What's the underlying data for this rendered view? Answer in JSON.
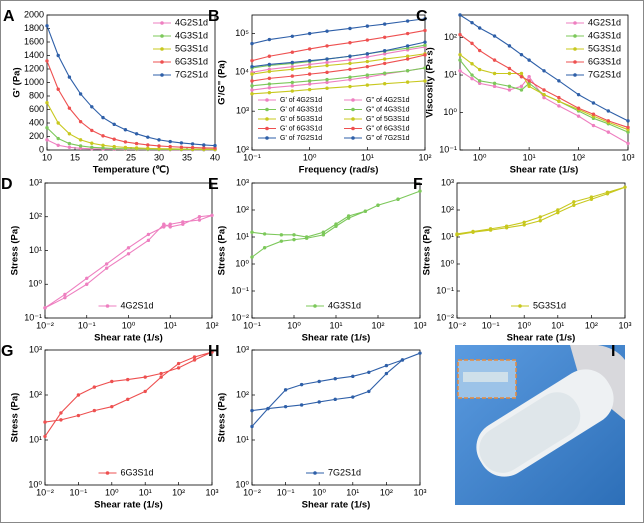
{
  "chart_data": [
    {
      "type": "line",
      "panel": "A",
      "xlabel": "Temperature (℃)",
      "ylabel": "G' (Pa)",
      "xlog": false,
      "ylog": false,
      "xlim": [
        10,
        40
      ],
      "xticks": [
        10,
        15,
        20,
        25,
        30,
        35,
        40
      ],
      "ylim": [
        0,
        2000
      ],
      "yticks": [
        0,
        200,
        400,
        600,
        800,
        1000,
        1200,
        1400,
        1600,
        1800,
        2000
      ],
      "legend": "upper right",
      "x": [
        10,
        12,
        14,
        16,
        18,
        20,
        22,
        24,
        26,
        28,
        30,
        32,
        34,
        36,
        38,
        40
      ],
      "series": [
        {
          "name": "4G2S1d",
          "color": "#ee7fc0",
          "values": [
            150,
            70,
            40,
            25,
            18,
            14,
            11,
            9,
            8,
            7,
            6,
            5,
            5,
            4,
            4,
            4
          ]
        },
        {
          "name": "4G3S1d",
          "color": "#7cc85a",
          "values": [
            330,
            170,
            95,
            60,
            40,
            30,
            22,
            18,
            15,
            12,
            10,
            9,
            8,
            7,
            6,
            6
          ]
        },
        {
          "name": "5G3S1d",
          "color": "#c8c81e",
          "values": [
            700,
            400,
            240,
            150,
            100,
            70,
            50,
            38,
            30,
            24,
            20,
            17,
            15,
            13,
            12,
            10
          ]
        },
        {
          "name": "6G3S1d",
          "color": "#ee5050",
          "values": [
            1320,
            900,
            620,
            420,
            290,
            210,
            160,
            120,
            95,
            75,
            60,
            50,
            42,
            36,
            31,
            28
          ]
        },
        {
          "name": "7G2S1d",
          "color": "#2e5fa8",
          "values": [
            1840,
            1400,
            1080,
            830,
            640,
            480,
            380,
            300,
            240,
            190,
            150,
            125,
            105,
            90,
            75,
            65
          ]
        }
      ]
    },
    {
      "type": "line",
      "panel": "B",
      "xlabel": "Frequency (rad/s)",
      "ylabel": "G'/G\" (Pa)",
      "xlog": true,
      "ylog": true,
      "xlim": [
        0.1,
        100
      ],
      "xticks": [
        {
          "value": 0.1,
          "label": "10⁻¹"
        },
        {
          "value": 1,
          "label": "10⁰"
        },
        {
          "value": 10,
          "label": "10¹"
        },
        {
          "value": 100,
          "label": "10²"
        }
      ],
      "ylim": [
        100,
        300000
      ],
      "yticks": [
        {
          "value": 100,
          "label": "10²"
        },
        {
          "value": 1000,
          "label": "10³"
        },
        {
          "value": 10000,
          "label": "10⁴"
        },
        {
          "value": 100000,
          "label": "10⁵"
        }
      ],
      "legend": "lower two columns",
      "x": [
        0.1,
        0.2,
        0.5,
        1,
        2,
        5,
        10,
        20,
        50,
        100
      ],
      "series": [
        {
          "name": "G' of 4G2S1d",
          "color": "#ee7fc0",
          "values": [
            10000,
            12000,
            14000,
            16000,
            18000,
            21000,
            25000,
            30000,
            38000,
            45000
          ]
        },
        {
          "name": "G'' of 4G2S1d",
          "color": "#ee7fc0",
          "values": [
            3500,
            4000,
            4500,
            5000,
            5500,
            6500,
            7500,
            9000,
            11000,
            13000
          ]
        },
        {
          "name": "G' of 4G3S1d",
          "color": "#7cc85a",
          "values": [
            13000,
            15000,
            17000,
            19000,
            22000,
            26000,
            30000,
            35000,
            42000,
            50000
          ]
        },
        {
          "name": "G'' of 4G3S1d",
          "color": "#7cc85a",
          "values": [
            4500,
            5000,
            5500,
            6000,
            6500,
            7500,
            8500,
            9500,
            11000,
            13000
          ]
        },
        {
          "name": "G' of 5G3S1d",
          "color": "#c8c81e",
          "values": [
            9000,
            10500,
            12000,
            13500,
            15000,
            17000,
            19000,
            22000,
            26000,
            30000
          ]
        },
        {
          "name": "G'' of 5G3S1d",
          "color": "#c8c81e",
          "values": [
            2800,
            3000,
            3300,
            3600,
            3900,
            4300,
            4700,
            5100,
            5600,
            6000
          ]
        },
        {
          "name": "G' of 6G3S1d",
          "color": "#ee5050",
          "values": [
            20000,
            26000,
            33000,
            40000,
            48000,
            58000,
            68000,
            80000,
            100000,
            120000
          ]
        },
        {
          "name": "G'' of 6G3S1d",
          "color": "#ee5050",
          "values": [
            6000,
            7000,
            8000,
            9000,
            10000,
            12000,
            14000,
            17000,
            22000,
            28000
          ]
        },
        {
          "name": "G' of 7G2S1d",
          "color": "#2e5fa8",
          "values": [
            55000,
            70000,
            85000,
            100000,
            115000,
            135000,
            155000,
            175000,
            210000,
            240000
          ]
        },
        {
          "name": "G'' of 7G2S1d",
          "color": "#2e5fa8",
          "values": [
            14000,
            16000,
            18000,
            20000,
            22000,
            26000,
            30000,
            36000,
            48000,
            60000
          ]
        }
      ]
    },
    {
      "type": "line",
      "panel": "C",
      "xlabel": "Shear rate (1/s)",
      "ylabel": "Viscosity (Pa·s)",
      "xlog": true,
      "ylog": true,
      "xlim": [
        0.4,
        1000
      ],
      "xticks": [
        {
          "value": 1,
          "label": "10⁰"
        },
        {
          "value": 10,
          "label": "10¹"
        },
        {
          "value": 100,
          "label": "10²"
        },
        {
          "value": 1000,
          "label": "10³"
        }
      ],
      "ylim": [
        0.1,
        400
      ],
      "yticks": [
        {
          "value": 0.1,
          "label": "10⁻¹"
        },
        {
          "value": 1,
          "label": "10⁰"
        },
        {
          "value": 10,
          "label": "10¹"
        },
        {
          "value": 100,
          "label": "10²"
        }
      ],
      "legend": "upper right",
      "x": [
        0.4,
        0.7,
        1,
        2,
        4,
        7,
        10,
        20,
        40,
        100,
        200,
        400,
        1000
      ],
      "series": [
        {
          "name": "4G2S1d",
          "color": "#ee7fc0",
          "values": [
            13,
            8,
            6,
            5,
            4,
            5,
            9,
            2.5,
            1.5,
            0.8,
            0.45,
            0.3,
            0.15
          ]
        },
        {
          "name": "4G3S1d",
          "color": "#7cc85a",
          "values": [
            25,
            10,
            7,
            6,
            5,
            4,
            6,
            3,
            2,
            1.1,
            0.7,
            0.5,
            0.3
          ]
        },
        {
          "name": "5G3S1d",
          "color": "#c8c81e",
          "values": [
            35,
            20,
            14,
            11,
            11,
            11,
            5,
            3,
            2,
            1.2,
            0.8,
            0.55,
            0.35
          ]
        },
        {
          "name": "6G3S1d",
          "color": "#ee5050",
          "values": [
            120,
            70,
            45,
            25,
            15,
            9,
            7,
            4,
            2.5,
            1.3,
            0.9,
            0.6,
            0.4
          ]
        },
        {
          "name": "7G2S1d",
          "color": "#2e5fa8",
          "values": [
            400,
            250,
            180,
            110,
            60,
            35,
            25,
            13,
            7,
            3,
            1.8,
            1.1,
            0.6
          ]
        }
      ]
    },
    {
      "type": "line",
      "panel": "D",
      "xlabel": "Shear rate (1/s)",
      "ylabel": "Stress (Pa)",
      "xlog": true,
      "ylog": true,
      "xlim": [
        0.01,
        100
      ],
      "xticks": [
        {
          "value": 0.01,
          "label": "10⁻²"
        },
        {
          "value": 0.1,
          "label": "10⁻¹"
        },
        {
          "value": 1,
          "label": "10⁰"
        },
        {
          "value": 10,
          "label": "10¹"
        },
        {
          "value": 100,
          "label": "10²"
        }
      ],
      "ylim": [
        0.1,
        1000
      ],
      "yticks": [
        {
          "value": 0.1,
          "label": "10⁻¹"
        },
        {
          "value": 1,
          "label": "10⁰"
        },
        {
          "value": 10,
          "label": "10¹"
        },
        {
          "value": 100,
          "label": "10²"
        },
        {
          "value": 1000,
          "label": "10³"
        }
      ],
      "legend": "lower center",
      "x": [
        0.01,
        0.03,
        0.1,
        0.3,
        1,
        3,
        7,
        10,
        20,
        50,
        100,
        50,
        20,
        10,
        7,
        3,
        1,
        0.3,
        0.1,
        0.03,
        0.01
      ],
      "series": [
        {
          "name": "4G2S1d",
          "color": "#ee7fc0",
          "values": [
            0.2,
            0.5,
            1.5,
            4,
            12,
            30,
            50,
            60,
            70,
            80,
            110,
            100,
            60,
            50,
            60,
            20,
            8,
            3,
            1,
            0.4,
            0.2
          ]
        }
      ]
    },
    {
      "type": "line",
      "panel": "E",
      "xlabel": "Shear rate (1/s)",
      "ylabel": "Stress (Pa)",
      "xlog": true,
      "ylog": true,
      "xlim": [
        0.1,
        1000
      ],
      "xticks": [
        {
          "value": 0.1,
          "label": "10⁻¹"
        },
        {
          "value": 1,
          "label": "10⁰"
        },
        {
          "value": 10,
          "label": "10¹"
        },
        {
          "value": 100,
          "label": "10²"
        },
        {
          "value": 1000,
          "label": "10³"
        }
      ],
      "ylim": [
        0.01,
        1000
      ],
      "yticks": [
        {
          "value": 0.01,
          "label": "10⁻²"
        },
        {
          "value": 0.1,
          "label": "10⁻¹"
        },
        {
          "value": 1,
          "label": "10⁰"
        },
        {
          "value": 10,
          "label": "10¹"
        },
        {
          "value": 100,
          "label": "10²"
        },
        {
          "value": 1000,
          "label": "10³"
        }
      ],
      "legend": "lower center",
      "x": [
        0.1,
        0.2,
        0.5,
        1,
        2,
        5,
        10,
        20,
        50,
        100,
        300,
        1000,
        300,
        100,
        50,
        20,
        10,
        5,
        2,
        1,
        0.5,
        0.2,
        0.1
      ],
      "series": [
        {
          "name": "4G3S1d",
          "color": "#7cc85a",
          "values": [
            15,
            13,
            12,
            12,
            10,
            15,
            30,
            60,
            90,
            150,
            250,
            500,
            250,
            150,
            90,
            50,
            25,
            12,
            9,
            8,
            7,
            4,
            1.8
          ]
        }
      ]
    },
    {
      "type": "line",
      "panel": "F",
      "xlabel": "Shear rate (1/s)",
      "ylabel": "Stress (Pa)",
      "xlog": true,
      "ylog": true,
      "xlim": [
        0.01,
        1000
      ],
      "xticks": [
        {
          "value": 0.01,
          "label": "10⁻²"
        },
        {
          "value": 0.1,
          "label": "10⁻¹"
        },
        {
          "value": 1,
          "label": "10⁰"
        },
        {
          "value": 10,
          "label": "10¹"
        },
        {
          "value": 100,
          "label": "10²"
        },
        {
          "value": 1000,
          "label": "10³"
        }
      ],
      "ylim": [
        0.01,
        1000
      ],
      "yticks": [
        {
          "value": 0.01,
          "label": "10⁻²"
        },
        {
          "value": 0.1,
          "label": "10⁻¹"
        },
        {
          "value": 1,
          "label": "10⁰"
        },
        {
          "value": 10,
          "label": "10¹"
        },
        {
          "value": 100,
          "label": "10²"
        },
        {
          "value": 1000,
          "label": "10³"
        }
      ],
      "legend": "lower center",
      "x": [
        0.01,
        0.03,
        0.1,
        0.3,
        1,
        3,
        10,
        30,
        100,
        300,
        1000,
        300,
        100,
        30,
        10,
        3,
        1,
        0.3,
        0.1,
        0.03,
        0.01
      ],
      "series": [
        {
          "name": "5G3S1d",
          "color": "#c8c81e",
          "values": [
            12,
            15,
            18,
            22,
            28,
            40,
            80,
            150,
            250,
            400,
            700,
            450,
            300,
            200,
            100,
            55,
            35,
            25,
            20,
            16,
            13
          ]
        }
      ]
    },
    {
      "type": "line",
      "panel": "G",
      "xlabel": "Shear rate (1/s)",
      "ylabel": "Stress (Pa)",
      "xlog": true,
      "ylog": true,
      "xlim": [
        0.01,
        1000
      ],
      "xticks": [
        {
          "value": 0.01,
          "label": "10⁻²"
        },
        {
          "value": 0.1,
          "label": "10⁻¹"
        },
        {
          "value": 1,
          "label": "10⁰"
        },
        {
          "value": 10,
          "label": "10¹"
        },
        {
          "value": 100,
          "label": "10²"
        },
        {
          "value": 1000,
          "label": "10³"
        }
      ],
      "ylim": [
        1,
        1000
      ],
      "yticks": [
        {
          "value": 1,
          "label": "10⁰"
        },
        {
          "value": 10,
          "label": "10¹"
        },
        {
          "value": 100,
          "label": "10²"
        },
        {
          "value": 1000,
          "label": "10³"
        }
      ],
      "legend": "lower center",
      "x": [
        0.01,
        0.03,
        0.1,
        0.3,
        1,
        3,
        10,
        30,
        100,
        300,
        1000,
        300,
        100,
        30,
        10,
        3,
        1,
        0.3,
        0.1,
        0.03,
        0.01
      ],
      "series": [
        {
          "name": "6G3S1d",
          "color": "#ee5050",
          "values": [
            12,
            40,
            100,
            150,
            200,
            220,
            250,
            300,
            400,
            600,
            900,
            700,
            500,
            250,
            120,
            80,
            55,
            45,
            35,
            28,
            25
          ]
        }
      ]
    },
    {
      "type": "line",
      "panel": "H",
      "xlabel": "Shear rate (1/s)",
      "ylabel": "Stress (Pa)",
      "xlog": true,
      "ylog": true,
      "xlim": [
        0.01,
        1000
      ],
      "xticks": [
        {
          "value": 0.01,
          "label": "10⁻²"
        },
        {
          "value": 0.1,
          "label": "10⁻¹"
        },
        {
          "value": 1,
          "label": "10⁰"
        },
        {
          "value": 10,
          "label": "10¹"
        },
        {
          "value": 100,
          "label": "10²"
        },
        {
          "value": 1000,
          "label": "10³"
        }
      ],
      "ylim": [
        1,
        1000
      ],
      "yticks": [
        {
          "value": 1,
          "label": "10⁰"
        },
        {
          "value": 10,
          "label": "10¹"
        },
        {
          "value": 100,
          "label": "10²"
        },
        {
          "value": 1000,
          "label": "10³"
        }
      ],
      "legend": "lower center",
      "x": [
        0.01,
        0.03,
        0.1,
        0.3,
        1,
        3,
        10,
        30,
        100,
        300,
        1000,
        300,
        100,
        30,
        10,
        3,
        1,
        0.3,
        0.1,
        0.03,
        0.01
      ],
      "series": [
        {
          "name": "7G2S1d",
          "color": "#2e5fa8",
          "values": [
            20,
            50,
            130,
            170,
            200,
            230,
            260,
            320,
            450,
            600,
            850,
            600,
            300,
            120,
            90,
            80,
            70,
            60,
            55,
            50,
            45
          ]
        }
      ]
    }
  ],
  "photo": {
    "panel": "I"
  }
}
